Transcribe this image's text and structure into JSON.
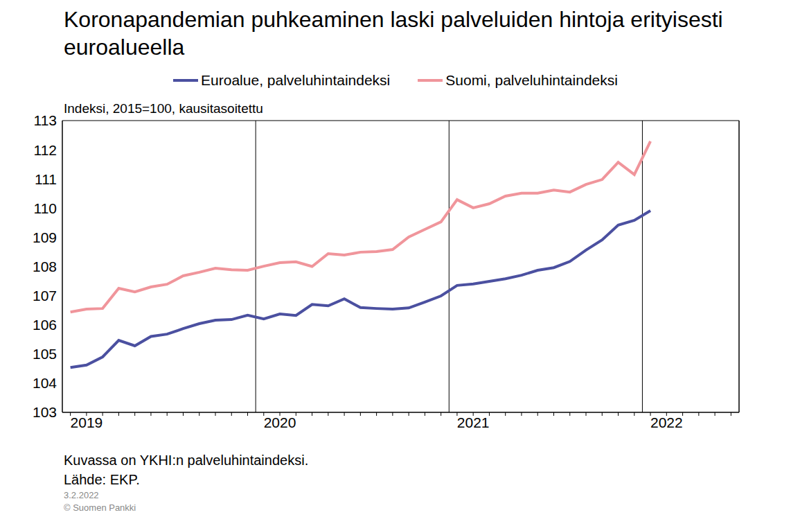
{
  "chart_data": {
    "type": "line",
    "title": "Koronapandemian puhkeaminen laski palveluiden hintoja erityisesti euroalueella",
    "y_label": "Indeksi, 2015=100, kausitasoitettu",
    "notes": [
      "Kuvassa on YKHI:n palveluhintaindeksi.",
      "Lähde: EKP."
    ],
    "footer": [
      "3.2.2022",
      "© Suomen Pankki"
    ],
    "legend": "top",
    "grid": true,
    "categories": [
      null,
      "2019",
      null,
      null,
      null,
      null,
      null,
      null,
      null,
      null,
      null,
      null,
      null,
      "2020",
      null,
      null,
      null,
      null,
      null,
      null,
      null,
      null,
      null,
      null,
      null,
      "2021",
      null,
      null,
      null,
      null,
      null,
      null,
      null,
      null,
      null,
      null,
      null,
      "2022",
      null,
      null,
      null,
      null
    ],
    "series": [
      {
        "name": "Euroalue, palveluhintaindeksi",
        "color": "#4b50a0",
        "values": [
          104.54,
          104.62,
          104.9,
          105.47,
          105.28,
          105.6,
          105.68,
          105.87,
          106.04,
          106.16,
          106.18,
          106.33,
          106.2,
          106.37,
          106.32,
          106.7,
          106.65,
          106.89,
          106.59,
          106.56,
          106.54,
          106.58,
          106.78,
          106.99,
          107.35,
          107.4,
          107.49,
          107.58,
          107.7,
          107.87,
          107.96,
          108.17,
          108.56,
          108.91,
          109.42,
          109.58,
          109.91,
          null,
          null,
          null,
          null,
          null
        ]
      },
      {
        "name": "Suomi, palveluhintaindeksi",
        "color": "#f0959b",
        "values": [
          106.44,
          106.54,
          106.56,
          107.25,
          107.13,
          107.3,
          107.39,
          107.68,
          107.8,
          107.94,
          107.89,
          107.87,
          108.01,
          108.13,
          108.16,
          108.0,
          108.44,
          108.39,
          108.49,
          108.51,
          108.58,
          109.01,
          109.27,
          109.53,
          110.29,
          110.01,
          110.15,
          110.41,
          110.51,
          110.51,
          110.62,
          110.55,
          110.81,
          110.98,
          111.57,
          111.15,
          112.29,
          null,
          null,
          null,
          null,
          null
        ]
      }
    ],
    "ylim": [
      103,
      113
    ],
    "yticks": [
      103,
      104,
      105,
      106,
      107,
      108,
      109,
      110,
      111,
      112,
      113
    ]
  }
}
